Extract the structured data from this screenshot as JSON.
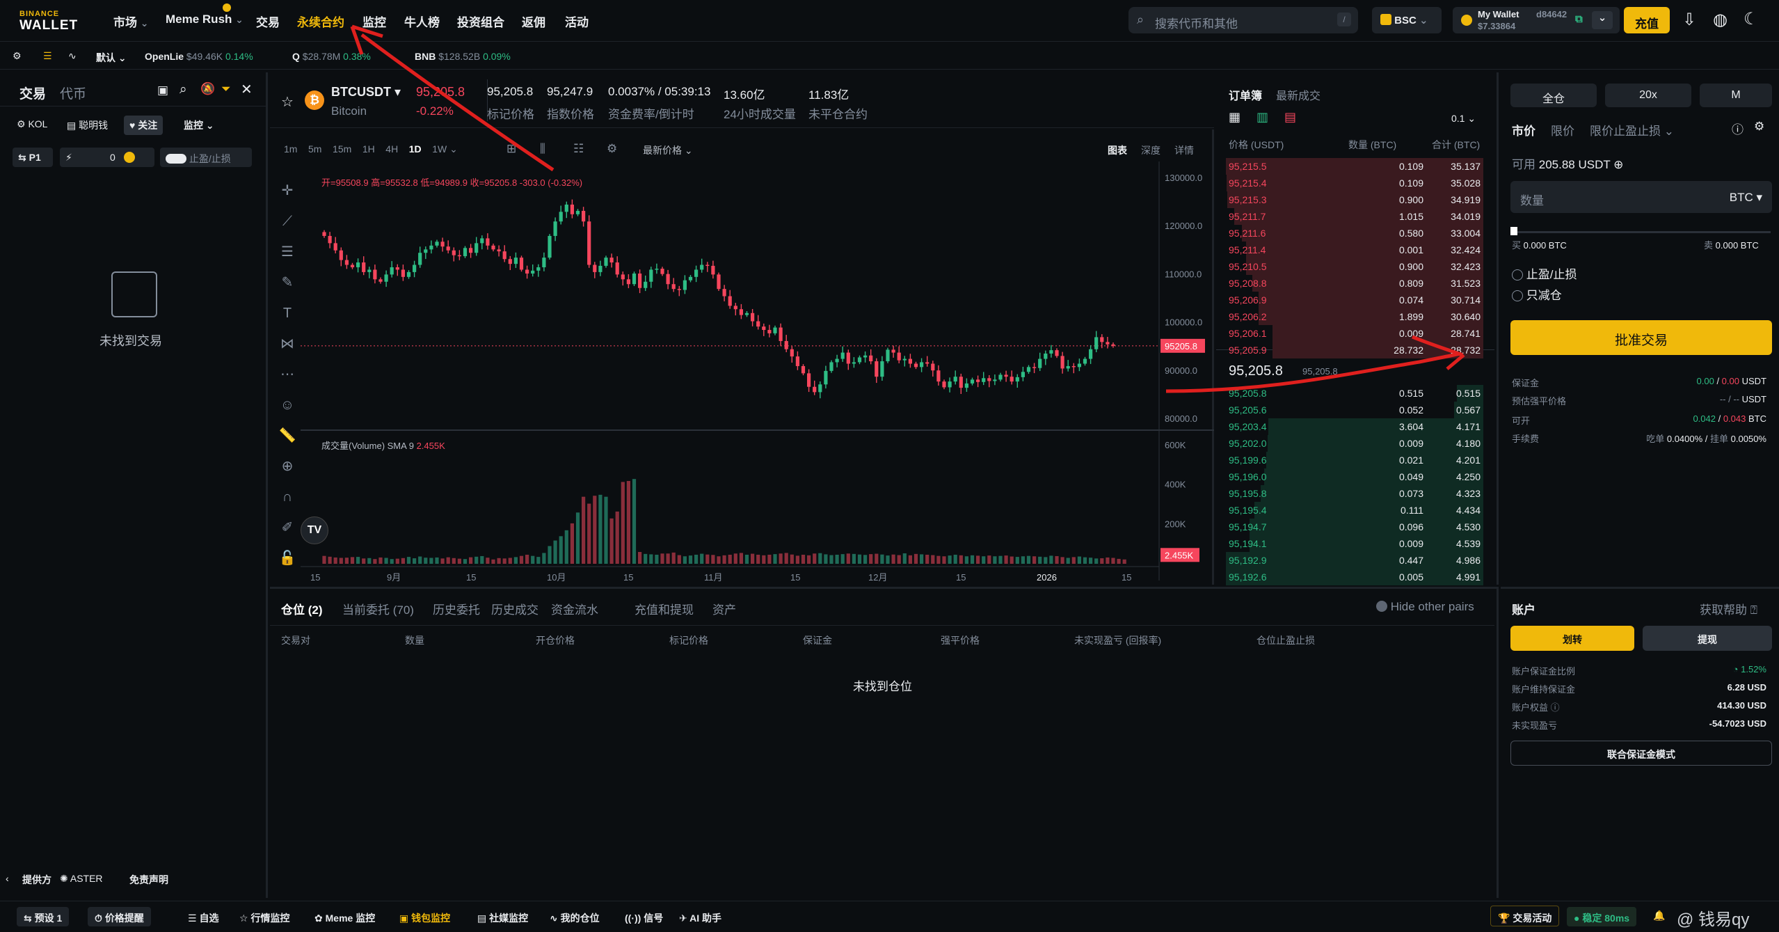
{
  "nav": {
    "logo_top": "BINANCE",
    "logo_bottom": "WALLET",
    "items": [
      "市场",
      "Meme Rush",
      "交易",
      "永续合约",
      "监控",
      "牛人榜",
      "投资组合",
      "返佣",
      "活动"
    ],
    "search_placeholder": "搜索代币和其他",
    "search_key": "/",
    "network": "BSC",
    "wallet_name": "My Wallet",
    "wallet_id": "d84642",
    "wallet_balance": "$7.33864",
    "deposit": "充值"
  },
  "ticker": {
    "preset": "默认",
    "items": [
      {
        "name": "OpenLie",
        "price": "$49.46K",
        "change": "0.14%"
      },
      {
        "name": "Q",
        "price": "$28.78M",
        "change": "0.38%"
      },
      {
        "name": "BNB",
        "price": "$128.52B",
        "change": "0.09%"
      }
    ]
  },
  "left": {
    "tabs": [
      "交易",
      "代币"
    ],
    "filters": [
      "KOL",
      "聪明钱",
      "关注",
      "监控"
    ],
    "p1": "P1",
    "zero": "0",
    "tpsl": "止盈/止损",
    "empty": "未找到交易",
    "provider": "提供方",
    "provider_name": "ASTER",
    "disclaimer": "免责声明"
  },
  "pair": {
    "symbol": "BTCUSDT",
    "name": "Bitcoin",
    "price": "95,205.8",
    "change": "-0.22%",
    "mark_price": "95,205.8",
    "mark_label": "标记价格",
    "index_price": "95,247.9",
    "index_label": "指数价格",
    "funding": "0.0037% / 05:39:13",
    "funding_label": "资金费率/倒计时",
    "volume": "13.60亿",
    "volume_label": "24小时成交量",
    "oi": "11.83亿",
    "oi_label": "未平仓合约"
  },
  "chart_toolbar": {
    "intervals": [
      "1m",
      "5m",
      "15m",
      "1H",
      "4H",
      "1D",
      "1W"
    ],
    "active": "1D",
    "price_type": "最新价格",
    "views": [
      "图表",
      "深度",
      "详情"
    ]
  },
  "chart_data": {
    "type": "candlestick",
    "ohlc_label": "开=95508.9 高=95532.8 低=94989.9 收=95205.8 -303.0 (-0.32%)",
    "y_ticks": [
      "130000.0",
      "120000.0",
      "110000.0",
      "100000.0",
      "90000.0",
      "80000.0"
    ],
    "y_range": [
      78000,
      132000
    ],
    "last_price": "95205.8",
    "volume_label": "成交量(Volume) SMA 9",
    "volume_sma": "2.455K",
    "volume_ticks": [
      "600K",
      "400K",
      "200K"
    ],
    "volume_last": "2.455K",
    "x_ticks": [
      "15",
      "9月",
      "15",
      "10月",
      "15",
      "11月",
      "15",
      "12月",
      "15",
      "2026",
      "15"
    ],
    "close_series": [
      118000,
      116500,
      115000,
      113000,
      112000,
      111500,
      112500,
      110500,
      111000,
      109000,
      108500,
      110000,
      111500,
      111000,
      109500,
      110500,
      112000,
      114500,
      115200,
      116000,
      116800,
      115800,
      115000,
      114000,
      113800,
      115500,
      114500,
      116500,
      117500,
      116000,
      115200,
      114800,
      113200,
      112200,
      113500,
      111000,
      110200,
      110800,
      111500,
      113500,
      118000,
      121000,
      123000,
      124500,
      122500,
      123200,
      121000,
      112000,
      110500,
      111800,
      113500,
      112500,
      110000,
      109000,
      108000,
      110200,
      107200,
      108500,
      111000,
      111200,
      110100,
      108000,
      107000,
      106800,
      108800,
      109500,
      111000,
      112000,
      111800,
      110000,
      107000,
      105500,
      103500,
      102800,
      101600,
      102000,
      100300,
      99200,
      98500,
      97800,
      99000,
      96200,
      94500,
      93000,
      91000,
      89500,
      86700,
      85600,
      87200,
      90000,
      91800,
      92500,
      93800,
      91500,
      91800,
      92800,
      93200,
      92000,
      88800,
      92000,
      94400,
      93800,
      92200,
      92500,
      91500,
      90800,
      91800,
      91500,
      90100,
      87800,
      86600,
      87800,
      88800,
      86500,
      87400,
      88200,
      87700,
      88500,
      87900,
      88200,
      89200,
      88800,
      87800,
      88700,
      89800,
      90800,
      90600,
      92500,
      93600,
      94300,
      93100,
      90500,
      91000,
      90800,
      91500,
      92500,
      94500,
      97000,
      96000,
      95500,
      95205.8
    ],
    "volume_series": [
      40,
      36,
      32,
      30,
      31,
      34,
      35,
      27,
      29,
      24,
      32,
      30,
      24,
      26,
      29,
      35,
      28,
      37,
      31,
      30,
      32,
      27,
      33,
      29,
      26,
      24,
      33,
      36,
      39,
      31,
      22,
      29,
      27,
      30,
      34,
      40,
      46,
      40,
      35,
      55,
      90,
      118,
      140,
      170,
      205,
      260,
      340,
      305,
      345,
      350,
      340,
      230,
      265,
      415,
      420,
      430,
      60,
      50,
      48,
      46,
      52,
      52,
      57,
      44,
      38,
      42,
      46,
      51,
      47,
      45,
      38,
      43,
      46,
      52,
      55,
      46,
      51,
      46,
      43,
      46,
      49,
      52,
      55,
      47,
      41,
      46,
      43,
      52,
      54,
      48,
      44,
      46,
      49,
      52,
      50,
      47,
      45,
      49,
      51,
      47,
      42,
      47,
      44,
      53,
      43,
      50,
      48,
      46,
      44,
      40,
      38,
      42,
      46,
      43,
      38,
      43,
      41,
      38,
      42,
      38,
      40,
      42,
      37,
      35,
      38,
      40,
      38,
      36,
      34,
      41,
      39,
      34,
      30,
      34,
      37,
      33,
      31,
      27,
      28,
      32,
      30,
      25,
      22
    ]
  },
  "orderbook": {
    "tabs": [
      "订单簿",
      "最新成交"
    ],
    "step": "0.1",
    "headers": [
      "价格 (USDT)",
      "数量 (BTC)",
      "合计 (BTC)"
    ],
    "asks": [
      [
        "95,215.5",
        "0.109",
        "35.137"
      ],
      [
        "95,215.4",
        "0.109",
        "35.028"
      ],
      [
        "95,215.3",
        "0.900",
        "34.919"
      ],
      [
        "95,211.7",
        "1.015",
        "34.019"
      ],
      [
        "95,211.6",
        "0.580",
        "33.004"
      ],
      [
        "95,211.4",
        "0.001",
        "32.424"
      ],
      [
        "95,210.5",
        "0.900",
        "32.423"
      ],
      [
        "95,208.8",
        "0.809",
        "31.523"
      ],
      [
        "95,206.9",
        "0.074",
        "30.714"
      ],
      [
        "95,206.2",
        "1.899",
        "30.640"
      ],
      [
        "95,206.1",
        "0.009",
        "28.741"
      ],
      [
        "95,205.9",
        "28.732",
        "28.732"
      ]
    ],
    "asks_depth": [
      1.0,
      0.997,
      0.994,
      0.968,
      0.939,
      0.922,
      0.922,
      0.897,
      0.874,
      0.872,
      0.818,
      0.818
    ],
    "mid": "95,205.8",
    "mid_sub": "95,205.8",
    "bids": [
      [
        "95,205.8",
        "0.515",
        "0.515"
      ],
      [
        "95,205.6",
        "0.052",
        "0.567"
      ],
      [
        "95,203.4",
        "3.604",
        "4.171"
      ],
      [
        "95,202.0",
        "0.009",
        "4.180"
      ],
      [
        "95,199.6",
        "0.021",
        "4.201"
      ],
      [
        "95,196.0",
        "0.049",
        "4.250"
      ],
      [
        "95,195.8",
        "0.073",
        "4.323"
      ],
      [
        "95,195.4",
        "0.111",
        "4.434"
      ],
      [
        "95,194.7",
        "0.096",
        "4.530"
      ],
      [
        "95,194.1",
        "0.009",
        "4.539"
      ],
      [
        "95,192.9",
        "0.447",
        "4.986"
      ],
      [
        "95,192.6",
        "0.005",
        "4.991"
      ]
    ],
    "bids_depth": [
      0.103,
      0.114,
      0.836,
      0.838,
      0.842,
      0.852,
      0.866,
      0.888,
      0.908,
      0.909,
      0.999,
      1.0
    ]
  },
  "order": {
    "mode": "全仓",
    "leverage": "20x",
    "m": "M",
    "types": [
      "市价",
      "限价",
      "限价止盈止损"
    ],
    "available_label": "可用",
    "available": "205.88 USDT",
    "qty_placeholder": "数量",
    "qty_unit": "BTC",
    "slider": 0,
    "buy_label": "买",
    "buy_qty": "0.000 BTC",
    "sell_label": "卖",
    "sell_qty": "0.000 BTC",
    "tpsl": "止盈/止损",
    "reduce": "只减仓",
    "approve": "批准交易",
    "margin_label": "保证金",
    "margin_a": "0.00",
    "margin_b": "0.00",
    "margin_unit": "USDT",
    "liq_label": "预估强平价格",
    "liq_value": "-- / --",
    "liq_unit": "USDT",
    "open_label": "可开",
    "open_a": "0.042",
    "open_b": "0.043",
    "open_unit": "BTC",
    "fee_label": "手续费",
    "fee_taker_label": "吃单",
    "fee_taker": "0.0400%",
    "fee_maker_label": "挂单",
    "fee_maker": "0.0050%"
  },
  "positions": {
    "tabs": [
      "仓位 (2)",
      "当前委托 (70)",
      "历史委托",
      "历史成交",
      "资金流水",
      "充值和提现",
      "资产"
    ],
    "hide_label": "Hide other pairs",
    "columns": [
      "交易对",
      "数量",
      "开仓价格",
      "标记价格",
      "保证金",
      "强平价格",
      "未实现盈亏 (回报率)",
      "仓位止盈止损"
    ],
    "empty": "未找到仓位"
  },
  "account": {
    "title": "账户",
    "help": "获取帮助",
    "transfer": "划转",
    "withdraw": "提现",
    "margin_ratio_label": "账户保证金比例",
    "margin_ratio": "1.52%",
    "maint_label": "账户维持保证金",
    "maint": "6.28 USD",
    "equity_label": "账户权益",
    "equity": "414.30 USD",
    "upnl_label": "未实现盈亏",
    "upnl": "-54.7023 USD",
    "unified": "联合保证金模式"
  },
  "bottom": {
    "items": [
      "预设 1",
      "价格提醒",
      "自选",
      "行情监控",
      "Meme 监控",
      "钱包监控",
      "社媒监控",
      "我的仓位",
      "信号",
      "AI 助手"
    ],
    "activity": "交易活动",
    "status": "稳定",
    "latency": "80ms",
    "watermark": "@ 钱易qy"
  },
  "colors": {
    "yellow": "#f0b90b",
    "green": "#2ebd85",
    "red": "#f6465d",
    "annotation": "#e0201e"
  }
}
